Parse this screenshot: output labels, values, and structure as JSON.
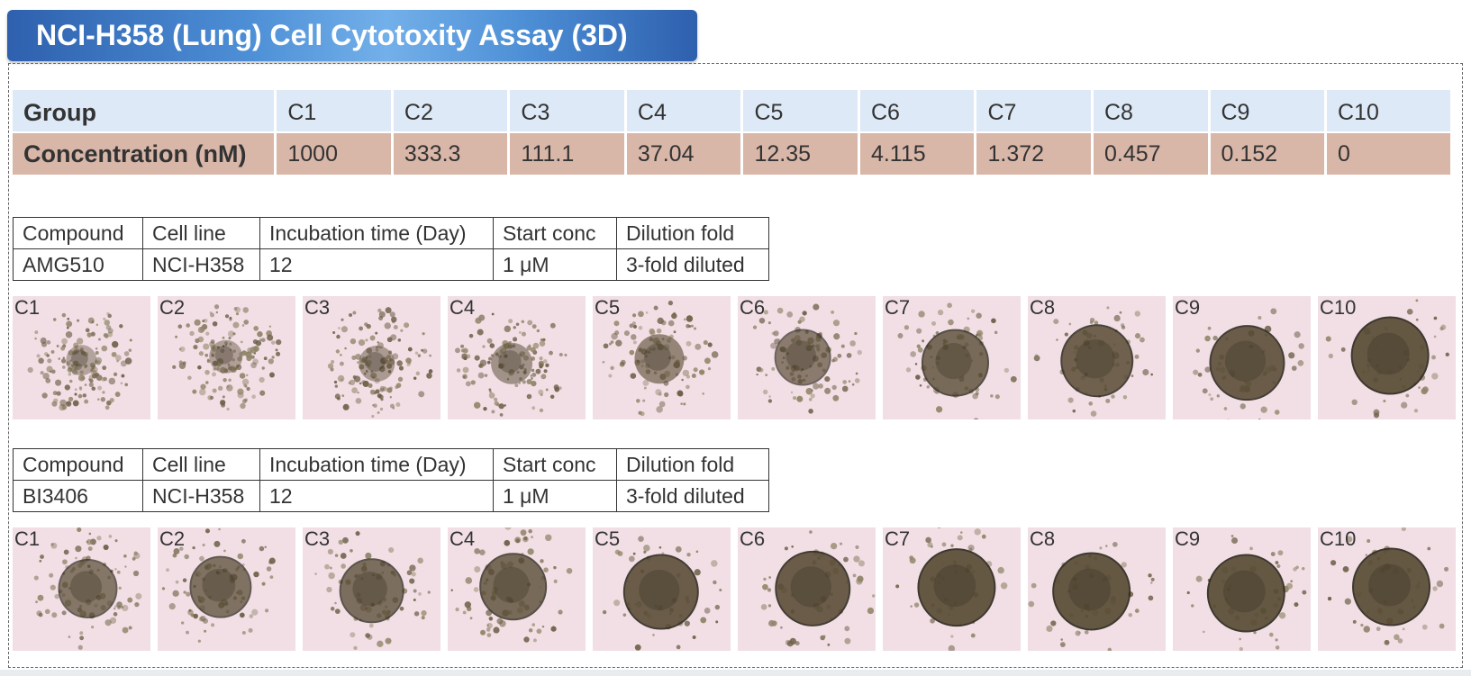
{
  "title": "NCI-H358 (Lung) Cell Cytotoxity Assay (3D)",
  "concentration_table": {
    "group_label": "Group",
    "concentration_label": "Concentration (nM)",
    "groups": [
      "C1",
      "C2",
      "C3",
      "C4",
      "C5",
      "C6",
      "C7",
      "C8",
      "C9",
      "C10"
    ],
    "concentrations": [
      "1000",
      "333.3",
      "111.1",
      "37.04",
      "12.35",
      "4.115",
      "1.372",
      "0.457",
      "0.152",
      "0"
    ]
  },
  "experiments": [
    {
      "headers": [
        "Compound",
        "Cell line",
        "Incubation time (Day)",
        "Start conc",
        "Dilution fold"
      ],
      "values": [
        "AMG510",
        "NCI-H358",
        "12",
        "1 μM",
        "3-fold diluted"
      ],
      "wells": [
        "C1",
        "C2",
        "C3",
        "C4",
        "C5",
        "C6",
        "C7",
        "C8",
        "C9",
        "C10"
      ],
      "spheroid_compactness": [
        0.1,
        0.15,
        0.2,
        0.3,
        0.45,
        0.55,
        0.75,
        0.85,
        0.9,
        0.95
      ]
    },
    {
      "headers": [
        "Compound",
        "Cell line",
        "Incubation time (Day)",
        "Start conc",
        "Dilution fold"
      ],
      "values": [
        "BI3406",
        "NCI-H358",
        "12",
        "1 μM",
        "3-fold diluted"
      ],
      "wells": [
        "C1",
        "C2",
        "C3",
        "C4",
        "C5",
        "C6",
        "C7",
        "C8",
        "C9",
        "C10"
      ],
      "spheroid_compactness": [
        0.6,
        0.65,
        0.7,
        0.75,
        0.9,
        0.9,
        0.95,
        0.95,
        0.95,
        0.95
      ]
    }
  ],
  "colors": {
    "title_bar": "#3d7cc9",
    "group_row": "#dde9f6",
    "concentration_row": "#d8b6a8",
    "well_background": "#f1dfe5",
    "spheroid": "#5a4d36"
  }
}
